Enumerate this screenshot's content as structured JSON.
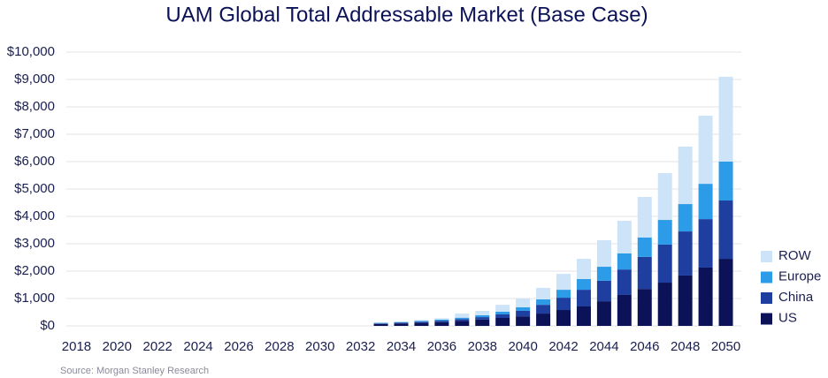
{
  "chart_data": {
    "type": "stacked_bar",
    "title": "UAM Global Total Addressable Market (Base Case)",
    "source": "Source: Morgan Stanley Research",
    "categories": [
      "2018",
      null,
      "2020",
      null,
      "2022",
      null,
      "2024",
      null,
      "2026",
      null,
      "2028",
      null,
      "2030",
      null,
      "2032",
      null,
      "2034",
      null,
      "2036",
      null,
      "2038",
      null,
      "2040",
      null,
      "2042",
      null,
      "2044",
      null,
      "2046",
      null,
      "2048",
      null,
      "2050"
    ],
    "series": [
      {
        "name": "US",
        "color": "#0b1257",
        "values": [
          0,
          0,
          0,
          0,
          0,
          0,
          0,
          0,
          0,
          0,
          0,
          0,
          0,
          0,
          0,
          70,
          90,
          110,
          140,
          180,
          230,
          290,
          350,
          450,
          580,
          710,
          900,
          1130,
          1350,
          1580,
          1840,
          2130,
          2450
        ]
      },
      {
        "name": "China",
        "color": "#1f3fa0",
        "values": [
          0,
          0,
          0,
          0,
          0,
          0,
          0,
          0,
          0,
          0,
          0,
          0,
          0,
          0,
          0,
          20,
          30,
          40,
          50,
          70,
          90,
          130,
          200,
          320,
          450,
          610,
          750,
          930,
          1170,
          1390,
          1610,
          1770,
          2130
        ]
      },
      {
        "name": "Europe",
        "color": "#2c9be8",
        "values": [
          0,
          0,
          0,
          0,
          0,
          0,
          0,
          0,
          0,
          0,
          0,
          0,
          0,
          0,
          0,
          20,
          20,
          30,
          40,
          50,
          70,
          100,
          130,
          200,
          290,
          390,
          510,
          590,
          710,
          900,
          1000,
          1290,
          1420
        ]
      },
      {
        "name": "ROW",
        "color": "#cde3f8",
        "values": [
          0,
          0,
          0,
          0,
          0,
          0,
          0,
          0,
          0,
          0,
          0,
          0,
          0,
          0,
          0,
          20,
          20,
          40,
          50,
          150,
          160,
          250,
          320,
          420,
          580,
          740,
          970,
          1190,
          1480,
          1710,
          2100,
          2490,
          3100
        ]
      }
    ],
    "ylim": [
      0,
      10000
    ],
    "yticks": [
      {
        "value": 0,
        "label": "$0"
      },
      {
        "value": 1000,
        "label": "$1,000"
      },
      {
        "value": 2000,
        "label": "$2,000"
      },
      {
        "value": 3000,
        "label": "$3,000"
      },
      {
        "value": 4000,
        "label": "$4,000"
      },
      {
        "value": 5000,
        "label": "$5,000"
      },
      {
        "value": 6000,
        "label": "$6,000"
      },
      {
        "value": 7000,
        "label": "$7,000"
      },
      {
        "value": 8000,
        "label": "$8,000"
      },
      {
        "value": 9000,
        "label": "$9,000"
      },
      {
        "value": 10000,
        "label": "$10,000"
      }
    ],
    "grid": true,
    "legend": "right"
  }
}
